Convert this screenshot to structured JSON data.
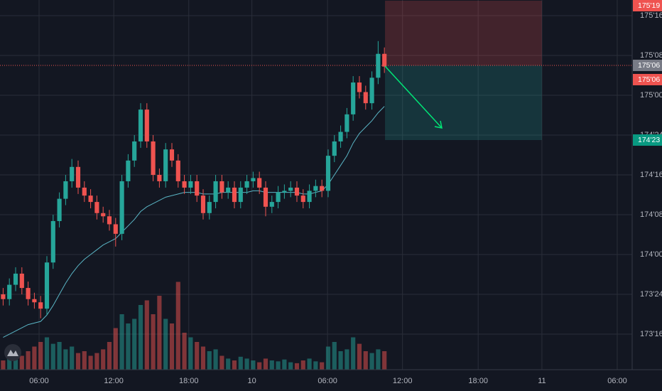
{
  "chart_data": {
    "type": "candlestick",
    "up_color": "#26a69a",
    "down_color": "#ef5350",
    "ma_color": "#5ab5c5",
    "grid": true,
    "ylim": [
      173.277,
      175.598
    ],
    "xlim": [
      0,
      101.14
    ],
    "yticks": [
      {
        "value": 173.5,
        "label": "173'16"
      },
      {
        "value": 173.75,
        "label": "173'24"
      },
      {
        "value": 174,
        "label": "174'00"
      },
      {
        "value": 174.25,
        "label": "174'08"
      },
      {
        "value": 174.5,
        "label": "174'16"
      },
      {
        "value": 174.75,
        "label": "174'24"
      },
      {
        "value": 175,
        "label": "175'00"
      },
      {
        "value": 175.25,
        "label": "175'08"
      },
      {
        "value": 175.5,
        "label": "175'16"
      }
    ],
    "xticks": [
      {
        "value": 6.25,
        "label": "06:00"
      },
      {
        "value": 18.2,
        "label": "12:00"
      },
      {
        "value": 30.2,
        "label": "18:00"
      },
      {
        "value": 40.3,
        "label": "10"
      },
      {
        "value": 52.4,
        "label": "06:00"
      },
      {
        "value": 64.4,
        "label": "12:00"
      },
      {
        "value": 76.5,
        "label": "18:00"
      },
      {
        "value": 86.7,
        "label": "11"
      },
      {
        "value": 98.75,
        "label": "06:00"
      }
    ],
    "open": [
      173.75,
      173.72,
      173.81,
      173.88,
      173.79,
      173.72,
      173.7,
      173.66,
      173.95,
      174.21,
      174.35,
      174.46,
      174.55,
      174.42,
      174.37,
      174.33,
      174.26,
      174.24,
      174.19,
      174.13,
      174.46,
      174.59,
      174.71,
      174.91,
      174.71,
      174.5,
      174.46,
      174.66,
      174.59,
      174.46,
      174.42,
      174.46,
      174.37,
      174.26,
      174.33,
      174.46,
      174.39,
      174.42,
      174.33,
      174.42,
      174.46,
      174.48,
      174.42,
      174.3,
      174.33,
      174.39,
      174.4,
      174.42,
      174.37,
      174.33,
      174.4,
      174.43,
      174.4,
      174.62,
      174.71,
      174.77,
      174.88,
      175.08,
      175.02,
      174.95,
      175.11,
      175.26
    ],
    "high": [
      173.79,
      173.85,
      173.92,
      173.92,
      173.83,
      173.76,
      173.74,
      173.99,
      174.25,
      174.39,
      174.5,
      174.6,
      174.59,
      174.46,
      174.41,
      174.37,
      174.3,
      174.28,
      174.23,
      174.5,
      174.63,
      174.75,
      174.95,
      174.95,
      174.75,
      174.54,
      174.7,
      174.7,
      174.63,
      174.5,
      174.5,
      174.5,
      174.41,
      174.37,
      174.5,
      174.5,
      174.46,
      174.46,
      174.46,
      174.5,
      174.52,
      174.52,
      174.46,
      174.37,
      174.43,
      174.44,
      174.46,
      174.46,
      174.41,
      174.44,
      174.47,
      174.47,
      174.66,
      174.75,
      174.81,
      174.92,
      175.12,
      175.12,
      175.06,
      175.15,
      175.34,
      175.3
    ],
    "low": [
      173.68,
      173.68,
      173.77,
      173.75,
      173.68,
      173.66,
      173.6,
      173.62,
      173.91,
      174.17,
      174.31,
      174.42,
      174.38,
      174.33,
      174.29,
      174.22,
      174.2,
      174.15,
      174.05,
      174.09,
      174.42,
      174.55,
      174.67,
      174.67,
      174.46,
      174.42,
      174.42,
      174.55,
      174.42,
      174.38,
      174.38,
      174.33,
      174.22,
      174.22,
      174.29,
      174.35,
      174.35,
      174.29,
      174.29,
      174.38,
      174.42,
      174.38,
      174.24,
      174.26,
      174.29,
      174.35,
      174.36,
      174.33,
      174.29,
      174.29,
      174.36,
      174.36,
      174.36,
      174.58,
      174.67,
      174.73,
      174.84,
      174.98,
      174.91,
      174.91,
      175.07,
      175.14
    ],
    "close": [
      173.72,
      173.81,
      173.88,
      173.79,
      173.72,
      173.7,
      173.66,
      173.95,
      174.21,
      174.35,
      174.46,
      174.55,
      174.42,
      174.37,
      174.33,
      174.26,
      174.24,
      174.19,
      174.13,
      174.46,
      174.59,
      174.71,
      174.91,
      174.71,
      174.5,
      174.46,
      174.66,
      174.59,
      174.46,
      174.42,
      174.46,
      174.37,
      174.26,
      174.33,
      174.46,
      174.39,
      174.42,
      174.33,
      174.42,
      174.46,
      174.48,
      174.42,
      174.3,
      174.33,
      174.39,
      174.4,
      174.42,
      174.37,
      174.33,
      174.4,
      174.43,
      174.4,
      174.62,
      174.71,
      174.77,
      174.88,
      175.08,
      175.02,
      174.95,
      175.11,
      175.26,
      175.18
    ],
    "volume": [
      10,
      14,
      12,
      15,
      20,
      25,
      30,
      35,
      28,
      30,
      22,
      25,
      18,
      20,
      15,
      18,
      22,
      30,
      45,
      60,
      50,
      55,
      70,
      75,
      60,
      80,
      55,
      50,
      95,
      40,
      35,
      30,
      25,
      20,
      22,
      15,
      12,
      10,
      14,
      12,
      10,
      8,
      12,
      10,
      9,
      11,
      8,
      7,
      10,
      12,
      9,
      8,
      25,
      30,
      20,
      22,
      35,
      28,
      20,
      18,
      22,
      20
    ],
    "vlim": [
      0,
      200
    ],
    "ma": [
      173.48,
      173.5,
      173.52,
      173.54,
      173.56,
      173.57,
      173.58,
      173.62,
      173.68,
      173.75,
      173.82,
      173.88,
      173.93,
      173.97,
      174.0,
      174.03,
      174.06,
      174.08,
      174.1,
      174.14,
      174.18,
      174.22,
      174.27,
      174.3,
      174.32,
      174.34,
      174.36,
      174.37,
      174.38,
      174.39,
      174.39,
      174.39,
      174.38,
      174.38,
      174.38,
      174.39,
      174.39,
      174.39,
      174.39,
      174.39,
      174.4,
      174.4,
      174.39,
      174.39,
      174.39,
      174.39,
      174.39,
      174.39,
      174.38,
      174.38,
      174.39,
      174.4,
      174.44,
      174.5,
      174.56,
      174.62,
      174.7,
      174.76,
      174.8,
      174.84,
      174.89,
      174.93
    ],
    "price_line": {
      "value": 175.1875,
      "label": "175'06",
      "color": "#ef5350"
    },
    "position": {
      "x_start": 61.6,
      "x_end": 86.7,
      "stop": {
        "value": 175.59375,
        "label": "175'19"
      },
      "entry": {
        "value": 175.1875,
        "label": "175'06"
      },
      "target": {
        "value": 174.71875,
        "label": "174'23"
      }
    }
  }
}
